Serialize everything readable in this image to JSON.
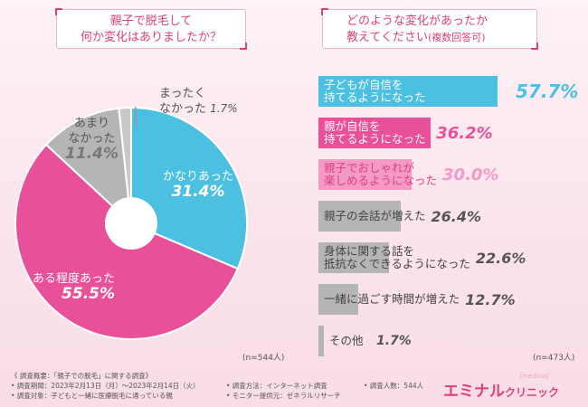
{
  "q1": {
    "line1": "親子で脱毛して",
    "line2": "何か変化はありましたか？"
  },
  "q2": {
    "line1": "どのような変化があったか",
    "line2": "教えてください",
    "note": "(複数回答可)"
  },
  "left_n": "(n=544人)",
  "right_n": "(n=473人)",
  "pie_labels": {
    "kanari": {
      "label": "かなりあった",
      "value": "31.4%"
    },
    "aru": {
      "label": "ある程度あった",
      "value": "55.5%"
    },
    "amari": {
      "label1": "あまり",
      "label2": "なかった",
      "value": "11.4%"
    },
    "mattaku": {
      "label1": "まったく",
      "label2": "なかった",
      "value": "1.7%"
    }
  },
  "bar_labels": [
    {
      "line1": "子どもが自信を",
      "line2": "持てるようになった",
      "value": "57.7%"
    },
    {
      "line1": "親が自信を",
      "line2": "持てるようになった",
      "value": "36.2%"
    },
    {
      "line1": "親子でおしゃれが",
      "line2": "楽しめるようになった",
      "value": "30.0%"
    },
    {
      "line1": "親子の会話が増えた",
      "line2": "",
      "value": "26.4%"
    },
    {
      "line1": "身体に関する話を",
      "line2": "抵抗なくできるようになった",
      "value": "22.6%"
    },
    {
      "line1": "一緒に過ごす時間が増えた",
      "line2": "",
      "value": "12.7%"
    },
    {
      "line1": "その他",
      "line2": "",
      "value": "1.7%"
    }
  ],
  "chart_data": [
    {
      "type": "pie",
      "title": "親子で脱毛して何か変化はありましたか？",
      "categories": [
        "かなりあった",
        "ある程度あった",
        "あまりなかった",
        "まったくなかった"
      ],
      "values": [
        31.4,
        55.5,
        11.4,
        1.7
      ],
      "colors": [
        "#4cc0e0",
        "#e8509a",
        "#b5b5b5",
        "#c8c8c8"
      ],
      "style": "donut"
    },
    {
      "type": "bar",
      "orientation": "horizontal",
      "title": "どのような変化があったか教えてください(複数回答可)",
      "categories": [
        "子どもが自信を持てるようになった",
        "親が自信を持てるようになった",
        "親子でおしゃれが楽しめるようになった",
        "親子の会話が増えた",
        "身体に関する話を抵抗なくできるようになった",
        "一緒に過ごす時間が増えた",
        "その他"
      ],
      "values": [
        57.7,
        36.2,
        30.0,
        26.4,
        22.6,
        12.7,
        1.7
      ],
      "colors": [
        "#4cc0e0",
        "#e8509a",
        "#f39bc6",
        "#b5b5b5",
        "#b5b5b5",
        "#b5b5b5",
        "#b5b5b5"
      ]
    }
  ],
  "footer": {
    "title": "《 調査概要：「親子での脱毛」に関する調査》",
    "period": "• 調査期間：2023年2月13日（月）〜2023年2月14日（火）",
    "target": "• 調査対象：子どもと一緒に医療脱毛に通っている親",
    "method": "• 調査方法：インターネット調査",
    "provider": "• モニター提供元：ゼネラルリサーチ",
    "count": "• 調査人数：544人"
  },
  "brand": {
    "name": "エミナル",
    "sub": "クリニック",
    "tag": "[medical]"
  }
}
